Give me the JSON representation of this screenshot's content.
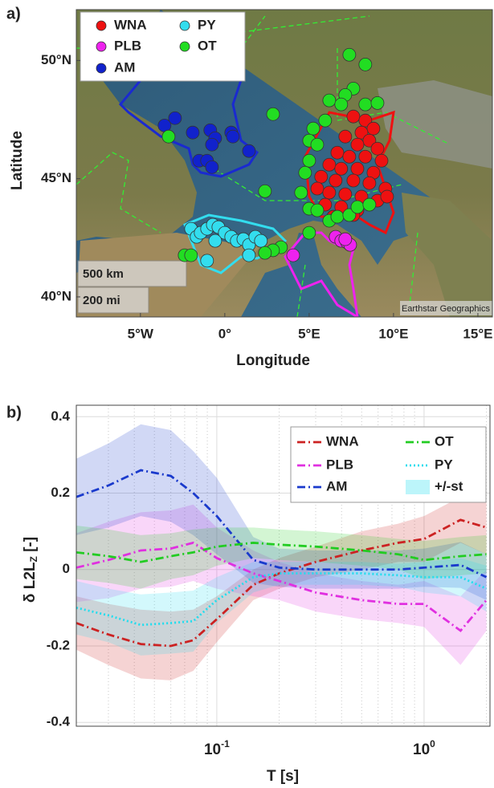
{
  "chart_data": [
    {
      "type": "scatter",
      "panel_label": "a)",
      "xlabel": "Longitude",
      "ylabel": "Latitude",
      "xlim": [
        -8.8,
        15.86
      ],
      "ylim": [
        39.15,
        52.15
      ],
      "xticks": [
        {
          "value": -5,
          "label": "5°W"
        },
        {
          "value": 0,
          "label": "0°"
        },
        {
          "value": 5,
          "label": "5°E"
        },
        {
          "value": 10,
          "label": "10°E"
        },
        {
          "value": 15,
          "label": "15°E"
        }
      ],
      "yticks": [
        {
          "value": 40,
          "label": "40°N"
        },
        {
          "value": 45,
          "label": "45°N"
        },
        {
          "value": 50,
          "label": "50°N"
        }
      ],
      "annotations": [
        "500 km",
        "200 mi",
        "Earthstar Geographics"
      ],
      "series": [
        {
          "name": "WNA",
          "color": "#ee1111",
          "x": [
            7.62,
            8.33,
            8.81,
            8.1,
            7.14,
            8.57,
            7.86,
            9.05,
            6.67,
            7.38,
            8.33,
            9.29,
            6.19,
            6.9,
            7.86,
            8.81,
            5.71,
            6.57,
            7.62,
            8.57,
            9.52,
            5.48,
            6.19,
            7.14,
            8.1,
            9.05,
            5.95,
            6.9,
            7.86,
            9.62,
            6.43,
            7.62
          ],
          "y": [
            47.63,
            47.46,
            47.12,
            46.95,
            46.78,
            46.61,
            46.44,
            46.27,
            46.1,
            45.93,
            45.93,
            45.76,
            45.59,
            45.42,
            45.42,
            45.25,
            45.08,
            44.92,
            44.92,
            44.81,
            44.58,
            44.58,
            44.41,
            44.34,
            44.24,
            44.07,
            43.9,
            43.8,
            43.66,
            44.24,
            43.39,
            43.46
          ]
        },
        {
          "name": "PLB",
          "color": "#ee22ee",
          "x": [
            4.05,
            6.57,
            6.9,
            7.24,
            7.43,
            7.14
          ],
          "y": [
            41.76,
            42.54,
            42.37,
            42.31,
            42.2,
            42.44
          ]
        },
        {
          "name": "AM",
          "color": "#1122cc",
          "x": [
            -3.57,
            -2.95,
            -1.9,
            -0.86,
            -0.57,
            0.38,
            0.48,
            -0.76,
            -1.52,
            -1.05,
            -0.76,
            1.43
          ],
          "y": [
            47.25,
            47.56,
            46.95,
            47.05,
            46.71,
            46.95,
            46.78,
            46.44,
            45.76,
            45.76,
            45.49,
            46.17
          ]
        },
        {
          "name": "PY",
          "color": "#33ddee",
          "x": [
            -2.0,
            -1.67,
            -1.43,
            -1.05,
            -0.71,
            -0.38,
            0,
            0.38,
            0.71,
            1.1,
            1.43,
            1.81,
            2.14,
            -0.57,
            -1.05,
            1.43
          ],
          "y": [
            42.88,
            42.54,
            42.71,
            42.88,
            43.05,
            42.95,
            42.71,
            42.54,
            42.37,
            42.44,
            42.2,
            42.54,
            42.37,
            42.37,
            41.53,
            41.76
          ]
        },
        {
          "name": "OT",
          "color": "#22dd22",
          "x": [
            7.38,
            8.33,
            7.62,
            7.14,
            6.19,
            6.9,
            8.33,
            9.05,
            5.95,
            5.24,
            5,
            5.48,
            2.86,
            2.38,
            5,
            4.76,
            4.52,
            5,
            5.48,
            6.19,
            6.67,
            7.38,
            7.86,
            8.57,
            5,
            3.33,
            2.86,
            2.38,
            -2.38,
            -2.0,
            -3.33
          ],
          "y": [
            50.24,
            49.83,
            48.81,
            48.54,
            48.31,
            48.14,
            48.14,
            48.2,
            47.46,
            47.12,
            46.61,
            46.44,
            47.73,
            44.47,
            45.76,
            45.25,
            44.41,
            43.73,
            43.66,
            43.22,
            43.39,
            43.46,
            43.8,
            43.9,
            42.71,
            42.1,
            41.97,
            41.86,
            41.76,
            41.76,
            46.78
          ]
        }
      ]
    },
    {
      "type": "line",
      "panel_label": "b)",
      "xlabel": "T [s]",
      "ylabel": "δ L2L_Z [-]",
      "xscale": "log",
      "grid": true,
      "xlim": [
        0.021,
        2.08
      ],
      "ylim": [
        -0.41,
        0.43
      ],
      "xticks": [
        {
          "value": 0.1,
          "label": "10^-1"
        },
        {
          "value": 1,
          "label": "10^0"
        }
      ],
      "xminorticks": [
        0.03,
        0.04,
        0.05,
        0.06,
        0.07,
        0.08,
        0.09,
        0.2,
        0.3,
        0.4,
        0.5,
        0.6,
        0.7,
        0.8,
        0.9,
        2
      ],
      "yticks": [
        -0.4,
        -0.2,
        0,
        0.2,
        0.4
      ],
      "band_label": "+/-st",
      "x": [
        0.021,
        0.03,
        0.043,
        0.06,
        0.077,
        0.1,
        0.15,
        0.2,
        0.3,
        0.5,
        0.75,
        1.0,
        1.5,
        2.0
      ],
      "series": [
        {
          "name": "WNA",
          "color": "#cc2222",
          "linestyle": "dashdot",
          "values": [
            -0.14,
            -0.17,
            -0.195,
            -0.2,
            -0.185,
            -0.13,
            -0.04,
            -0.01,
            0.02,
            0.05,
            0.07,
            0.08,
            0.13,
            0.11
          ],
          "errors": [
            0.07,
            0.08,
            0.09,
            0.09,
            0.08,
            0.06,
            0.04,
            0.04,
            0.04,
            0.05,
            0.05,
            0.06,
            0.06,
            0.07
          ]
        },
        {
          "name": "PLB",
          "color": "#e030e0",
          "linestyle": "dashdot",
          "values": [
            0.005,
            0.025,
            0.05,
            0.055,
            0.07,
            0.03,
            -0.01,
            -0.03,
            -0.06,
            -0.08,
            -0.09,
            -0.09,
            -0.16,
            -0.08
          ],
          "errors": [
            0.09,
            0.1,
            0.1,
            0.1,
            0.1,
            0.08,
            0.06,
            0.05,
            0.05,
            0.05,
            0.05,
            0.06,
            0.09,
            0.08
          ]
        },
        {
          "name": "AM",
          "color": "#1a3acc",
          "linestyle": "dashdot",
          "values": [
            0.19,
            0.22,
            0.26,
            0.245,
            0.2,
            0.14,
            0.025,
            0.005,
            0.0,
            0.0,
            0.0,
            0.005,
            0.012,
            -0.02
          ],
          "errors": [
            0.1,
            0.11,
            0.12,
            0.12,
            0.11,
            0.1,
            0.06,
            0.05,
            0.05,
            0.05,
            0.05,
            0.05,
            0.06,
            0.06
          ]
        },
        {
          "name": "OT",
          "color": "#22cc22",
          "linestyle": "dashdot",
          "values": [
            0.045,
            0.035,
            0.02,
            0.035,
            0.045,
            0.06,
            0.07,
            0.065,
            0.06,
            0.05,
            0.04,
            0.025,
            0.035,
            0.04
          ],
          "errors": [
            0.07,
            0.07,
            0.07,
            0.06,
            0.06,
            0.05,
            0.04,
            0.04,
            0.04,
            0.04,
            0.04,
            0.05,
            0.05,
            0.05
          ]
        },
        {
          "name": "PY",
          "color": "#22ddee",
          "linestyle": "dotted",
          "values": [
            -0.1,
            -0.12,
            -0.145,
            -0.14,
            -0.135,
            -0.08,
            -0.02,
            -0.01,
            -0.01,
            -0.01,
            -0.015,
            -0.02,
            -0.02,
            -0.05
          ],
          "errors": [
            0.07,
            0.07,
            0.08,
            0.08,
            0.08,
            0.06,
            0.04,
            0.03,
            0.03,
            0.03,
            0.03,
            0.04,
            0.05,
            0.06
          ]
        }
      ]
    }
  ]
}
